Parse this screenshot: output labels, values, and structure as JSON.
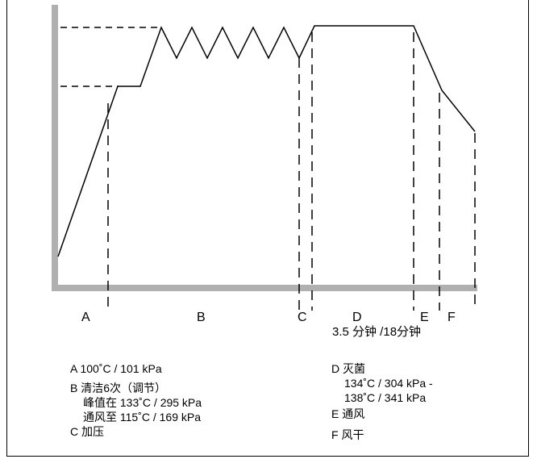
{
  "phases": {
    "a": "A",
    "b": "B",
    "c": "C",
    "d": "D",
    "e": "E",
    "f": "F"
  },
  "duration_note": "3.5 分钟 /18分钟",
  "legend": {
    "a_line": "A 100˚C / 101 kPa",
    "b_line1": "B 清洁6次（调节）",
    "b_line2": "峰值在 133˚C / 295 kPa",
    "b_line3": "通风至 115˚C / 169 kPa",
    "c_line": "C 加压",
    "d_line1": "D 灭菌",
    "d_line2": "134˚C / 304 kPa -",
    "d_line3": "138˚C / 341 kPa",
    "e_line": "E 通风",
    "f_line": "F 风干"
  },
  "colors": {
    "axis": "#b0b0b0",
    "line": "#000000"
  }
}
